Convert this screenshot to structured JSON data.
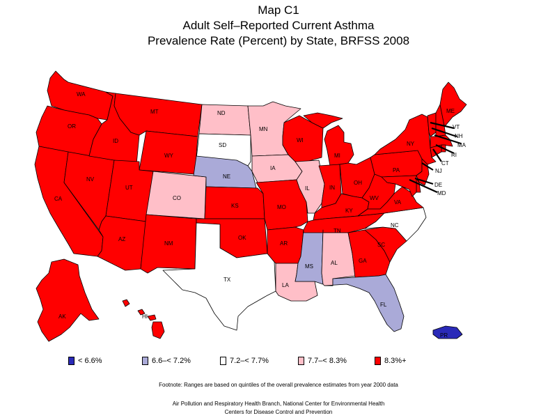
{
  "title": {
    "line1": "Map C1",
    "line2": "Adult Self–Reported Current Asthma",
    "line3": "Prevalence Rate (Percent) by State, BRFSS 2008"
  },
  "legend": [
    {
      "label": "< 6.6%",
      "color": "#2a2ab8"
    },
    {
      "label": "6.6–< 7.2%",
      "color": "#aaaad8"
    },
    {
      "label": "7.2–< 7.7%",
      "color": "#ffffff"
    },
    {
      "label": "7.7–< 8.3%",
      "color": "#ffbfc8"
    },
    {
      "label": "8.3%+",
      "color": "#ff0000"
    }
  ],
  "states": {
    "WA": 4,
    "OR": 4,
    "CA": 4,
    "NV": 4,
    "ID": 4,
    "MT": 4,
    "WY": 4,
    "UT": 4,
    "AZ": 4,
    "CO": 3,
    "NM": 4,
    "ND": 3,
    "SD": 2,
    "NE": 1,
    "KS": 4,
    "OK": 4,
    "TX": 2,
    "MN": 3,
    "IA": 3,
    "MO": 4,
    "AR": 4,
    "LA": 3,
    "WI": 4,
    "IL": 3,
    "MS": 1,
    "MI": 4,
    "IN": 4,
    "KY": 4,
    "TN": 4,
    "AL": 3,
    "OH": 4,
    "WV": 4,
    "GA": 4,
    "FL": 1,
    "SC": 4,
    "NC": 2,
    "VA": 4,
    "PA": 4,
    "NY": 4,
    "VT": 4,
    "NH": 4,
    "ME": 4,
    "MA": 4,
    "RI": 4,
    "CT": 4,
    "NJ": 4,
    "DE": 4,
    "MD": 4,
    "AK": 4,
    "HI": 4,
    "PR": 0
  },
  "footnote": "Footnote: Ranges are based on quintiles of the overall prevalence estimates from year 2000 data",
  "credits": {
    "line1": "Air Pollution and Respiratory Health Branch, National Center for Environmental Health",
    "line2": "Centers for Disease Control and Prevention"
  }
}
